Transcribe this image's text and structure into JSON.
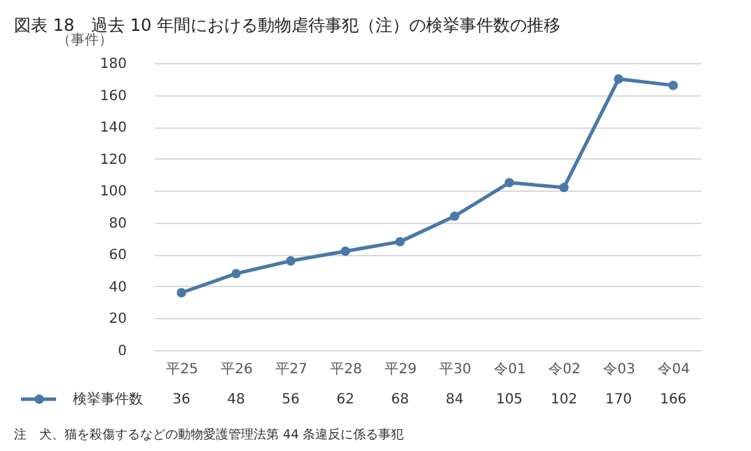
{
  "chart_data": {
    "type": "line",
    "title": "図表 18　過去 10 年間における動物虐待事犯（注）の検挙事件数の推移",
    "ylabel": "（事件）",
    "categories": [
      "平25",
      "平26",
      "平27",
      "平28",
      "平29",
      "平30",
      "令01",
      "令02",
      "令03",
      "令04"
    ],
    "series": [
      {
        "name": "検挙事件数",
        "color": "#4a78a8",
        "values": [
          36,
          48,
          56,
          62,
          68,
          84,
          105,
          102,
          170,
          166
        ]
      }
    ],
    "ylim": [
      0,
      180
    ],
    "yticks": [
      0,
      20,
      40,
      60,
      80,
      100,
      120,
      140,
      160,
      180
    ],
    "grid": "y",
    "marker": "circle",
    "line_style": "solid",
    "data_labels": true,
    "legend": "bottom",
    "annotations": [
      "注　犬、猫を殺傷するなどの動物愛護管理法第 44 条違反に係る事犯"
    ]
  }
}
